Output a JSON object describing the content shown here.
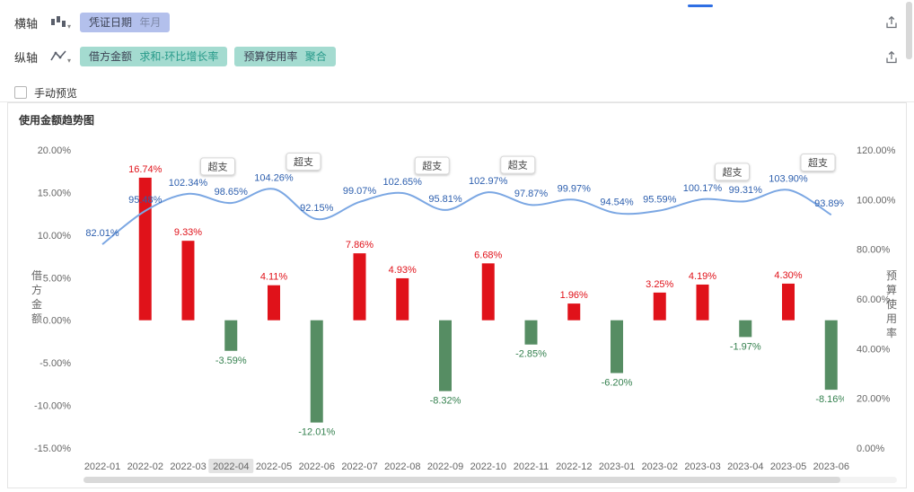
{
  "toolbar": {
    "x_axis_label": "横轴",
    "y_axis_label": "纵轴",
    "x_field": {
      "name": "凭证日期",
      "agg": "年月"
    },
    "y_fields": [
      {
        "name": "借方金额",
        "agg": "求和-环比增长率"
      },
      {
        "name": "预算使用率",
        "agg": "聚合"
      }
    ],
    "manual_preview_label": "手动预览",
    "manual_preview_checked": false
  },
  "chart_data": {
    "type": "combo",
    "title": "使用金额趋势图",
    "categories": [
      "2022-01",
      "2022-02",
      "2022-03",
      "2022-04",
      "2022-05",
      "2022-06",
      "2022-07",
      "2022-08",
      "2022-09",
      "2022-10",
      "2022-11",
      "2022-12",
      "2023-01",
      "2023-02",
      "2023-03",
      "2023-04",
      "2023-05",
      "2023-06"
    ],
    "series": [
      {
        "name": "借方金额 求和-环比增长率",
        "type": "bar",
        "axis": "left",
        "values": [
          null,
          16.74,
          9.33,
          -3.59,
          4.11,
          -12.01,
          7.86,
          4.93,
          -8.32,
          6.68,
          -2.85,
          1.96,
          -6.2,
          3.25,
          4.19,
          -1.97,
          4.3,
          -8.16
        ],
        "positive_color": "#e0121a",
        "negative_color": "#568d63",
        "positive_label_color": "#e0121a",
        "negative_label_color": "#35814f"
      },
      {
        "name": "预算使用率 聚合",
        "type": "line",
        "axis": "right",
        "values": [
          82.01,
          95.48,
          102.34,
          98.65,
          104.26,
          92.15,
          99.07,
          102.65,
          95.81,
          102.97,
          97.87,
          99.97,
          94.54,
          95.59,
          100.17,
          99.31,
          103.9,
          93.89
        ],
        "color": "#7ba7e3",
        "label_color": "#2d5fae",
        "overspend_label": "超支",
        "overspend_threshold": 100
      }
    ],
    "left_axis": {
      "title": "借方金额",
      "min": -15,
      "max": 20,
      "step": 5,
      "unit": "%"
    },
    "right_axis": {
      "title": "预算使用率",
      "min": 0,
      "max": 120,
      "step": 20,
      "unit": "%"
    },
    "x_axis": {
      "highlighted": "2022-04"
    },
    "grid": false,
    "legend": "none"
  }
}
